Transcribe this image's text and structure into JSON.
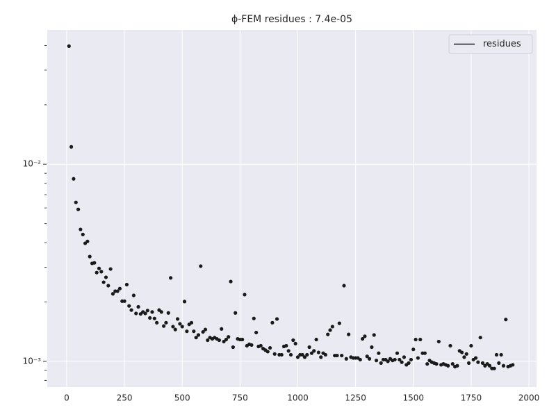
{
  "chart_data": {
    "type": "scatter",
    "title": "ϕ-FEM residues : 7.4e-05",
    "x": [
      10,
      20,
      30,
      40,
      50,
      60,
      70,
      80,
      90,
      100,
      110,
      120,
      130,
      140,
      150,
      160,
      170,
      180,
      190,
      200,
      210,
      220,
      230,
      240,
      250,
      260,
      270,
      280,
      290,
      300,
      310,
      320,
      330,
      340,
      350,
      360,
      370,
      380,
      390,
      400,
      410,
      420,
      430,
      440,
      450,
      460,
      470,
      480,
      490,
      500,
      510,
      520,
      530,
      540,
      550,
      560,
      570,
      580,
      590,
      600,
      610,
      620,
      630,
      640,
      650,
      660,
      670,
      680,
      690,
      700,
      710,
      720,
      730,
      740,
      750,
      760,
      770,
      780,
      790,
      800,
      810,
      820,
      830,
      840,
      850,
      860,
      870,
      880,
      890,
      900,
      910,
      920,
      930,
      940,
      950,
      960,
      970,
      980,
      990,
      1000,
      1010,
      1020,
      1030,
      1040,
      1050,
      1060,
      1070,
      1080,
      1090,
      1100,
      1110,
      1120,
      1130,
      1140,
      1150,
      1160,
      1170,
      1180,
      1190,
      1200,
      1210,
      1220,
      1230,
      1240,
      1250,
      1260,
      1270,
      1280,
      1290,
      1300,
      1310,
      1320,
      1330,
      1340,
      1350,
      1360,
      1370,
      1380,
      1390,
      1400,
      1410,
      1420,
      1430,
      1440,
      1450,
      1460,
      1470,
      1480,
      1490,
      1500,
      1510,
      1520,
      1530,
      1540,
      1550,
      1560,
      1570,
      1580,
      1590,
      1600,
      1610,
      1620,
      1630,
      1640,
      1650,
      1660,
      1670,
      1680,
      1690,
      1700,
      1710,
      1720,
      1730,
      1740,
      1750,
      1760,
      1770,
      1780,
      1790,
      1800,
      1810,
      1820,
      1830,
      1840,
      1850,
      1860,
      1870,
      1880,
      1890,
      1900,
      1910,
      1920,
      1930
    ],
    "series": [
      {
        "name": "residues",
        "color": "#1a1a1a",
        "values": [
          0.0397,
          0.01225,
          0.00843,
          0.0064,
          0.0059,
          0.00467,
          0.0044,
          0.00397,
          0.00406,
          0.0034,
          0.00314,
          0.00316,
          0.00282,
          0.00296,
          0.00285,
          0.00252,
          0.00267,
          0.00242,
          0.00294,
          0.0022,
          0.00227,
          0.00227,
          0.00234,
          0.00202,
          0.00202,
          0.00245,
          0.00191,
          0.00182,
          0.00216,
          0.00175,
          0.00189,
          0.00174,
          0.00178,
          0.00175,
          0.00181,
          0.00166,
          0.00178,
          0.00165,
          0.00157,
          0.00182,
          0.00178,
          0.00151,
          0.00157,
          0.00176,
          0.00265,
          0.0015,
          0.00145,
          0.00164,
          0.00155,
          0.0015,
          0.00201,
          0.00142,
          0.00154,
          0.00157,
          0.00142,
          0.00132,
          0.00136,
          0.00304,
          0.00141,
          0.00145,
          0.00128,
          0.00132,
          0.0013,
          0.00132,
          0.0013,
          0.00128,
          0.00146,
          0.00126,
          0.00129,
          0.00133,
          0.00254,
          0.00118,
          0.00176,
          0.0013,
          0.00129,
          0.00129,
          0.00218,
          0.0012,
          0.00122,
          0.00121,
          0.00165,
          0.0014,
          0.00119,
          0.0012,
          0.00116,
          0.00114,
          0.00112,
          0.00117,
          0.00157,
          0.00109,
          0.00164,
          0.00108,
          0.00108,
          0.00119,
          0.0012,
          0.00113,
          0.00108,
          0.00128,
          0.00123,
          0.00105,
          0.00108,
          0.00108,
          0.00105,
          0.00108,
          0.00118,
          0.0011,
          0.00113,
          0.00129,
          0.00111,
          0.00105,
          0.0011,
          0.00108,
          0.00137,
          0.00144,
          0.0015,
          0.00107,
          0.00107,
          0.00156,
          0.00107,
          0.00242,
          0.00103,
          0.00137,
          0.00105,
          0.00104,
          0.00104,
          0.00104,
          0.00102,
          0.0013,
          0.00134,
          0.00106,
          0.00103,
          0.00118,
          0.00136,
          0.00101,
          0.0011,
          0.00098,
          0.00102,
          0.00102,
          0.001,
          0.00103,
          0.00101,
          0.00102,
          0.0011,
          0.00102,
          0.00099,
          0.00105,
          0.00096,
          0.00098,
          0.00102,
          0.00115,
          0.00129,
          0.00104,
          0.00129,
          0.0011,
          0.0011,
          0.00097,
          0.00101,
          0.00099,
          0.00098,
          0.00097,
          0.00126,
          0.00096,
          0.00097,
          0.00096,
          0.00095,
          0.0012,
          0.00097,
          0.00094,
          0.00095,
          0.00113,
          0.00111,
          0.00105,
          0.00109,
          0.00098,
          0.0012,
          0.00102,
          0.00104,
          0.00099,
          0.00132,
          0.00098,
          0.00095,
          0.00097,
          0.00095,
          0.00092,
          0.00092,
          0.00108,
          0.00098,
          0.00108,
          0.00095,
          0.00163,
          0.00094,
          0.00095,
          0.00096
        ]
      }
    ],
    "xlim": [
      -84,
      2033
    ],
    "xticks": [
      0,
      250,
      500,
      750,
      1000,
      1250,
      1500,
      1750,
      2000
    ],
    "ylim": [
      0.00074,
      0.048
    ],
    "ylog": true,
    "yticks": [
      {
        "value": 0.001,
        "label": "10⁻³"
      },
      {
        "value": 0.01,
        "label": "10⁻²"
      }
    ],
    "yticks_minor": [
      0.0008,
      0.0009,
      0.002,
      0.003,
      0.004,
      0.005,
      0.006,
      0.007,
      0.008,
      0.009,
      0.02,
      0.03,
      0.04
    ],
    "grid": true,
    "legend": "upper right"
  }
}
